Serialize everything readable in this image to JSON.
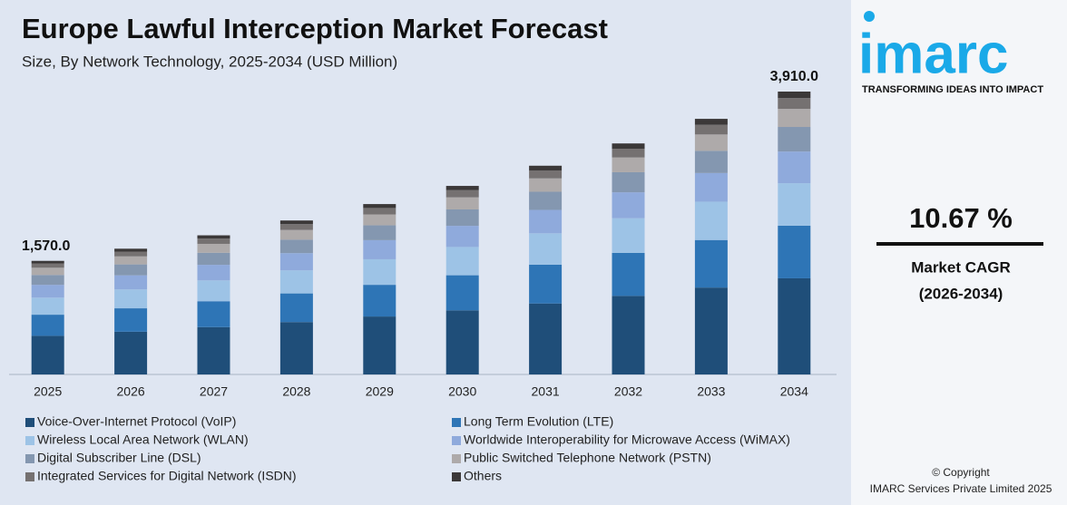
{
  "chart_data": {
    "type": "stacked-bar",
    "title": "Europe Lawful Interception Market Forecast",
    "subtitle": "Size, By Network Technology, 2025-2034 (USD Million)",
    "categories": [
      "2025",
      "2026",
      "2027",
      "2028",
      "2029",
      "2030",
      "2031",
      "2032",
      "2033",
      "2034"
    ],
    "series": [
      {
        "name": "Voice-Over-Internet Protocol (VoIP)",
        "color": "#1f4e79",
        "values": [
          534,
          591,
          654,
          724,
          801,
          886,
          981,
          1086,
          1201,
          1329
        ]
      },
      {
        "name": "Long Term Evolution (LTE)",
        "color": "#2e75b6",
        "values": [
          292,
          323,
          358,
          396,
          438,
          485,
          537,
          594,
          657,
          727
        ]
      },
      {
        "name": "Wireless Local Area Network (WLAN)",
        "color": "#9dc3e6",
        "values": [
          236,
          261,
          288,
          319,
          353,
          391,
          433,
          479,
          530,
          587
        ]
      },
      {
        "name": "Worldwide Interoperability for Microwave Access (WiMAX)",
        "color": "#8faadc",
        "values": [
          176,
          195,
          215,
          238,
          264,
          292,
          323,
          358,
          396,
          438
        ]
      },
      {
        "name": "Digital Subscriber Line (DSL)",
        "color": "#8497b0",
        "values": [
          137,
          151,
          167,
          185,
          205,
          227,
          251,
          278,
          307,
          340
        ]
      },
      {
        "name": "Public Switched Telephone Network (PSTN)",
        "color": "#aeaaaa",
        "values": [
          100,
          111,
          123,
          136,
          151,
          167,
          185,
          204,
          226,
          250
        ]
      },
      {
        "name": "Integrated Services for Digital Network (ISDN)",
        "color": "#757171",
        "values": [
          60,
          66,
          73,
          81,
          89,
          99,
          110,
          121,
          134,
          149
        ]
      },
      {
        "name": "Others",
        "color": "#3b3838",
        "values": [
          35,
          40,
          45,
          49,
          54,
          59,
          65,
          73,
          82,
          90
        ]
      }
    ],
    "totals": [
      1570,
      null,
      null,
      null,
      null,
      null,
      null,
      null,
      null,
      3910
    ],
    "total_labels": [
      "1,570.0",
      null,
      null,
      null,
      null,
      null,
      null,
      null,
      null,
      "3,910.0"
    ],
    "legend": "bottom"
  },
  "sidebar": {
    "logo": "imarc",
    "tagline": "TRANSFORMING IDEAS INTO IMPACT",
    "cagr": "10.67 %",
    "cagr_label": "Market CAGR",
    "cagr_period": "(2026-2034)",
    "copyright": "© Copyright",
    "company": "IMARC Services Private Limited 2025"
  }
}
